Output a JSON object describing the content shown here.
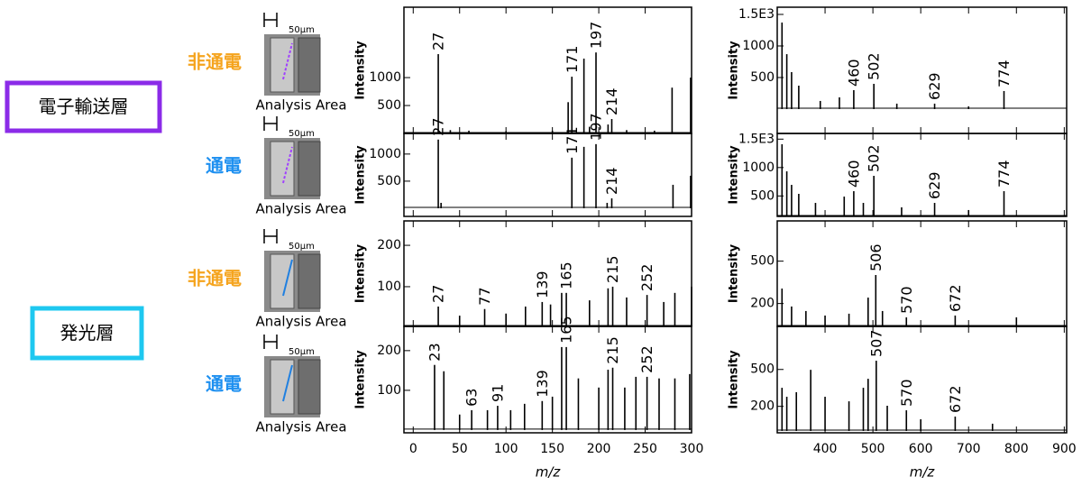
{
  "layers": [
    {
      "name": "電子輸送層",
      "color": "#8b2be8",
      "conditions": [
        {
          "label": "非通電",
          "color": "#f5a41e",
          "scale": "50μm",
          "caption": "Analysis Area"
        },
        {
          "label": "通電",
          "color": "#1e90f0",
          "scale": "50μm",
          "caption": "Analysis Area"
        }
      ]
    },
    {
      "name": "発光層",
      "color": "#1ec8f0",
      "conditions": [
        {
          "label": "非通電",
          "color": "#f5a41e",
          "scale": "50μm",
          "caption": "Analysis Area"
        },
        {
          "label": "通電",
          "color": "#1e90f0",
          "scale": "50μm",
          "caption": "Analysis Area"
        }
      ]
    }
  ],
  "chart_data": [
    {
      "type": "spectrum",
      "y_label": "Intensity",
      "color": "#000000",
      "xlim": [
        -10,
        300
      ],
      "xticks": [
        0,
        50,
        100,
        150,
        200,
        250,
        300
      ],
      "ylim": [
        0,
        2260
      ],
      "yticks": [
        500,
        1000
      ],
      "labeled_peaks": {
        "x": [
          27,
          171,
          197,
          214
        ],
        "values": [
          1420,
          1016,
          1450,
          258
        ]
      },
      "other_peaks": {
        "x": [
          184,
          167,
          279,
          299,
          210,
          190,
          40,
          60,
          100,
          150,
          230,
          260
        ],
        "values": [
          1340,
          560,
          820,
          1000,
          160,
          120,
          60,
          50,
          40,
          50,
          60,
          50
        ]
      }
    },
    {
      "type": "spectrum",
      "y_label": "Intensity",
      "color": "#000000",
      "xlim": [
        300,
        905
      ],
      "xticks": [
        400,
        500,
        600,
        700,
        800,
        900
      ],
      "ylim": [
        -386,
        1614
      ],
      "yticks": [
        500,
        1000,
        {
          "value": 1500,
          "label": "1.5E3"
        }
      ],
      "labeled_peaks": {
        "x": [
          460,
          502,
          629,
          774
        ],
        "values": [
          300,
          400,
          86,
          286
        ]
      },
      "other_peaks": {
        "x": [
          310,
          320,
          330,
          345,
          430,
          390,
          550,
          700
        ],
        "values": [
          1371,
          870,
          586,
          371,
          186,
          129,
          86,
          43
        ]
      }
    },
    {
      "type": "spectrum",
      "y_label": "Intensity",
      "color": "#000000",
      "xlim": [
        -10,
        300
      ],
      "xticks": [
        0,
        50,
        100,
        150,
        200,
        250,
        300
      ],
      "ylim": [
        -150,
        1380
      ],
      "yticks": [
        500,
        1000
      ],
      "labeled_peaks": {
        "x": [
          27,
          171,
          197,
          214
        ],
        "values": [
          1267,
          933,
          1183,
          183
        ]
      },
      "other_peaks": {
        "x": [
          184,
          280,
          299,
          209,
          30
        ],
        "values": [
          1133,
          433,
          600,
          100,
          100
        ]
      }
    },
    {
      "type": "spectrum",
      "y_label": "Intensity",
      "color": "#000000",
      "xlim": [
        300,
        905
      ],
      "xticks": [
        400,
        500,
        600,
        700,
        800,
        900
      ],
      "ylim": [
        140,
        1600
      ],
      "yticks": [
        500,
        1000,
        {
          "value": 1500,
          "label": "1.5E3"
        }
      ],
      "labeled_peaks": {
        "x": [
          460,
          502,
          629,
          774
        ],
        "values": [
          584,
          854,
          378,
          584
        ]
      },
      "other_peaks": {
        "x": [
          310,
          320,
          330,
          345,
          440,
          380,
          560,
          700,
          480
        ],
        "values": [
          1410,
          933,
          695,
          537,
          489,
          378,
          300,
          252,
          378
        ]
      }
    },
    {
      "type": "spectrum",
      "y_label": "Intensity",
      "color": "#000000",
      "xlim": [
        -10,
        300
      ],
      "xticks": [
        0,
        50,
        100,
        150,
        200,
        250,
        300
      ],
      "ylim": [
        4,
        259
      ],
      "yticks": [
        100,
        200
      ],
      "labeled_peaks": {
        "x": [
          27,
          77,
          139,
          165,
          215,
          252
        ],
        "values": [
          52,
          46,
          63,
          85,
          100,
          80
        ]
      },
      "other_peaks": {
        "x": [
          160,
          210,
          230,
          282,
          300,
          121,
          148,
          190,
          270,
          50,
          100
        ],
        "values": [
          85,
          96,
          74,
          85,
          100,
          52,
          57,
          67,
          63,
          30,
          35
        ]
      }
    },
    {
      "type": "spectrum",
      "y_label": "Intensity",
      "color": "#000000",
      "xlim": [
        300,
        905
      ],
      "xticks": [
        400,
        500,
        600,
        700,
        800,
        900
      ],
      "ylim": [
        38,
        785
      ],
      "yticks": [
        200,
        500
      ],
      "labeled_peaks": {
        "x": [
          506,
          570,
          672
        ],
        "values": [
          402,
          102,
          115
        ]
      },
      "other_peaks": {
        "x": [
          310,
          330,
          360,
          400,
          450,
          490,
          800,
          520
        ],
        "values": [
          306,
          179,
          147,
          115,
          128,
          242,
          102,
          147
        ]
      }
    },
    {
      "type": "spectrum",
      "y_label": "Intensity",
      "x_label": "m/z",
      "color": "#000000",
      "xlim": [
        -10,
        300
      ],
      "xticks": [
        0,
        50,
        100,
        150,
        200,
        250,
        300
      ],
      "ylim": [
        -7,
        261
      ],
      "yticks": [
        100,
        200
      ],
      "labeled_peaks": {
        "x": [
          23,
          63,
          91,
          139,
          165,
          215,
          252
        ],
        "values": [
          164,
          50,
          61,
          73,
          209,
          157,
          134
        ]
      },
      "other_peaks": {
        "x": [
          33,
          160,
          178,
          200,
          210,
          228,
          240,
          265,
          282,
          298,
          120,
          150,
          50,
          80,
          105
        ],
        "values": [
          148,
          209,
          130,
          107,
          152,
          107,
          134,
          130,
          130,
          141,
          66,
          84,
          39,
          50,
          50
        ]
      }
    },
    {
      "type": "spectrum",
      "y_label": "Intensity",
      "x_label": "m/z",
      "color": "#000000",
      "xlim": [
        300,
        905
      ],
      "xticks": [
        400,
        500,
        600,
        700,
        800,
        900
      ],
      "ylim": [
        -15,
        850
      ],
      "yticks": [
        200,
        500
      ],
      "labeled_peaks": {
        "x": [
          507,
          570,
          672
        ],
        "values": [
          571,
          168,
          117
        ]
      },
      "other_peaks": {
        "x": [
          310,
          320,
          340,
          370,
          400,
          450,
          480,
          490,
          530,
          600,
          750
        ],
        "values": [
          351,
          278,
          315,
          497,
          278,
          241,
          351,
          424,
          205,
          95,
          59
        ]
      }
    }
  ]
}
